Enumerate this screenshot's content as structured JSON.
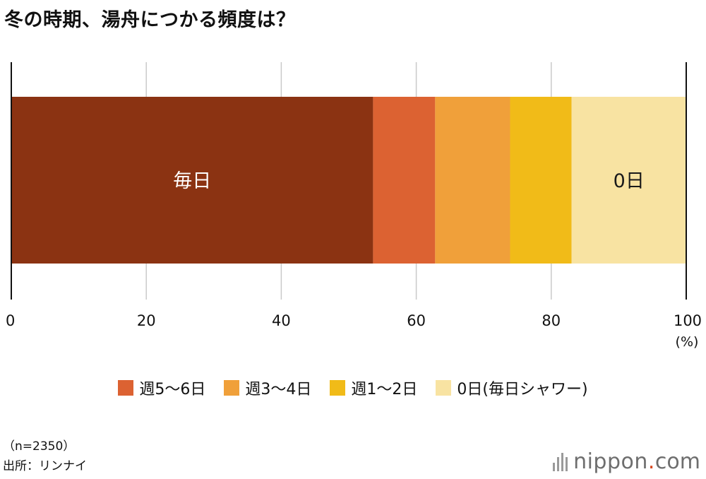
{
  "title": "冬の時期、湯舟につかる頻度は？",
  "chart_data": {
    "type": "bar",
    "orientation": "horizontal-stacked-100",
    "title": "冬の時期、湯舟につかる頻度は？",
    "xlim": [
      0,
      100
    ],
    "x_ticks": [
      0,
      20,
      40,
      60,
      80,
      100
    ],
    "x_unit": "(%)",
    "grid": true,
    "legend_position": "bottom",
    "segments": [
      {
        "name": "毎日",
        "value": 53.6,
        "color": "#8b3312",
        "label": "毎日",
        "label_color": "#ffffff"
      },
      {
        "name": "週5〜6日",
        "value": 9.2,
        "color": "#dc6232",
        "label": "",
        "label_color": "#ffffff"
      },
      {
        "name": "週3〜4日",
        "value": 11.1,
        "color": "#f0a03a",
        "label": "",
        "label_color": "#ffffff"
      },
      {
        "name": "週1〜2日",
        "value": 9.1,
        "color": "#f1bb18",
        "label": "",
        "label_color": "#ffffff"
      },
      {
        "name": "0日(毎日シャワー)",
        "value": 17.0,
        "color": "#f8e3a2",
        "label": "0日",
        "label_color": "#1a1a1a"
      }
    ]
  },
  "legend": [
    {
      "label": "週5〜6日",
      "color": "#dc6232"
    },
    {
      "label": "週3〜4日",
      "color": "#f0a03a"
    },
    {
      "label": "週1〜2日",
      "color": "#f1bb18"
    },
    {
      "label": "0日(毎日シャワー)",
      "color": "#f8e3a2"
    }
  ],
  "footnotes": {
    "sample": "（n=2350）",
    "source": "出所：リンナイ"
  },
  "logo": {
    "name": "nippon",
    "dot": ".",
    "suffix": "com"
  }
}
